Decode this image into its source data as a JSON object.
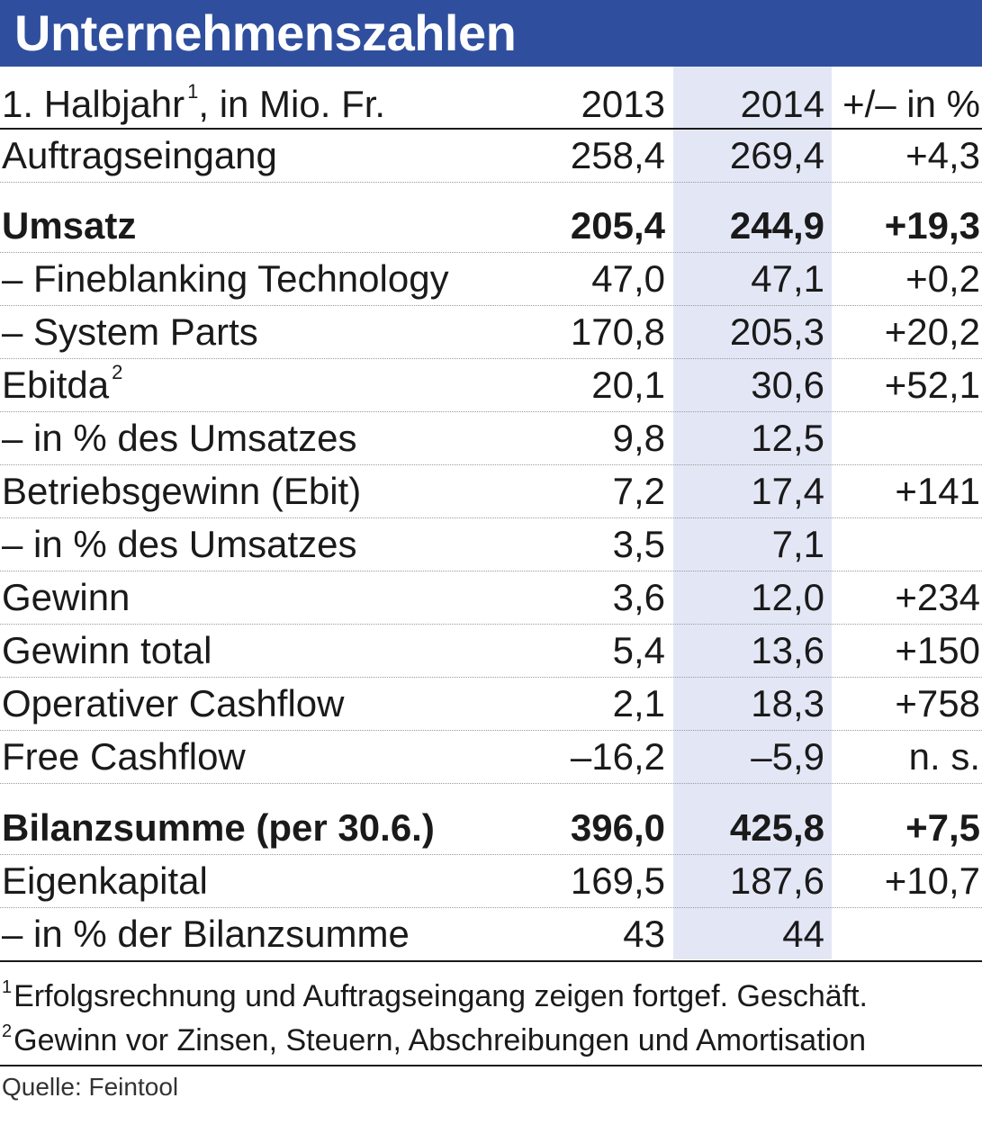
{
  "title": "Unternehmenszahlen",
  "header": {
    "label": "1. Halbjahr",
    "label_sup": "1",
    "label_suffix": ", in Mio. Fr.",
    "col_2013": "2013",
    "col_2014": "2014",
    "col_change": "+/– in %"
  },
  "rows": [
    {
      "label": "Auftragseingang",
      "v2013": "258,4",
      "v2014": "269,4",
      "change": "+4,3"
    },
    {
      "label": "Umsatz",
      "v2013": "205,4",
      "v2014": "244,9",
      "change": "+19,3"
    },
    {
      "label": "– Fineblanking Technology",
      "v2013": "47,0",
      "v2014": "47,1",
      "change": "+0,2"
    },
    {
      "label": "– System Parts",
      "v2013": "170,8",
      "v2014": "205,3",
      "change": "+20,2"
    },
    {
      "label": "Ebitda",
      "label_sup": "2",
      "v2013": "20,1",
      "v2014": "30,6",
      "change": "+52,1"
    },
    {
      "label": "– in % des Umsatzes",
      "v2013": "9,8",
      "v2014": "12,5",
      "change": ""
    },
    {
      "label": "Betriebsgewinn (Ebit)",
      "v2013": "7,2",
      "v2014": "17,4",
      "change": "+141"
    },
    {
      "label": "– in % des Umsatzes",
      "v2013": "3,5",
      "v2014": "7,1",
      "change": ""
    },
    {
      "label": "Gewinn",
      "v2013": "3,6",
      "v2014": "12,0",
      "change": "+234"
    },
    {
      "label": "Gewinn total",
      "v2013": "5,4",
      "v2014": "13,6",
      "change": "+150"
    },
    {
      "label": "Operativer Cashflow",
      "v2013": "2,1",
      "v2014": "18,3",
      "change": "+758"
    },
    {
      "label": "Free Cashflow",
      "v2013": "–16,2",
      "v2014": "–5,9",
      "change": "n. s."
    },
    {
      "label": "Bilanzsumme (per 30.6.)",
      "v2013": "396,0",
      "v2014": "425,8",
      "change": "+7,5"
    },
    {
      "label": "Eigenkapital",
      "v2013": "169,5",
      "v2014": "187,6",
      "change": "+10,7"
    },
    {
      "label": "– in % der Bilanzsumme",
      "v2013": "43",
      "v2014": "44",
      "change": ""
    }
  ],
  "footnotes": [
    {
      "mark": "1",
      "text": "Erfolgsrechnung und Auftragseingang zeigen fortgef. Geschäft."
    },
    {
      "mark": "2",
      "text": "Gewinn vor Zinsen, Steuern, Abschreibungen und Amortisation"
    }
  ],
  "source": "Quelle: Feintool"
}
